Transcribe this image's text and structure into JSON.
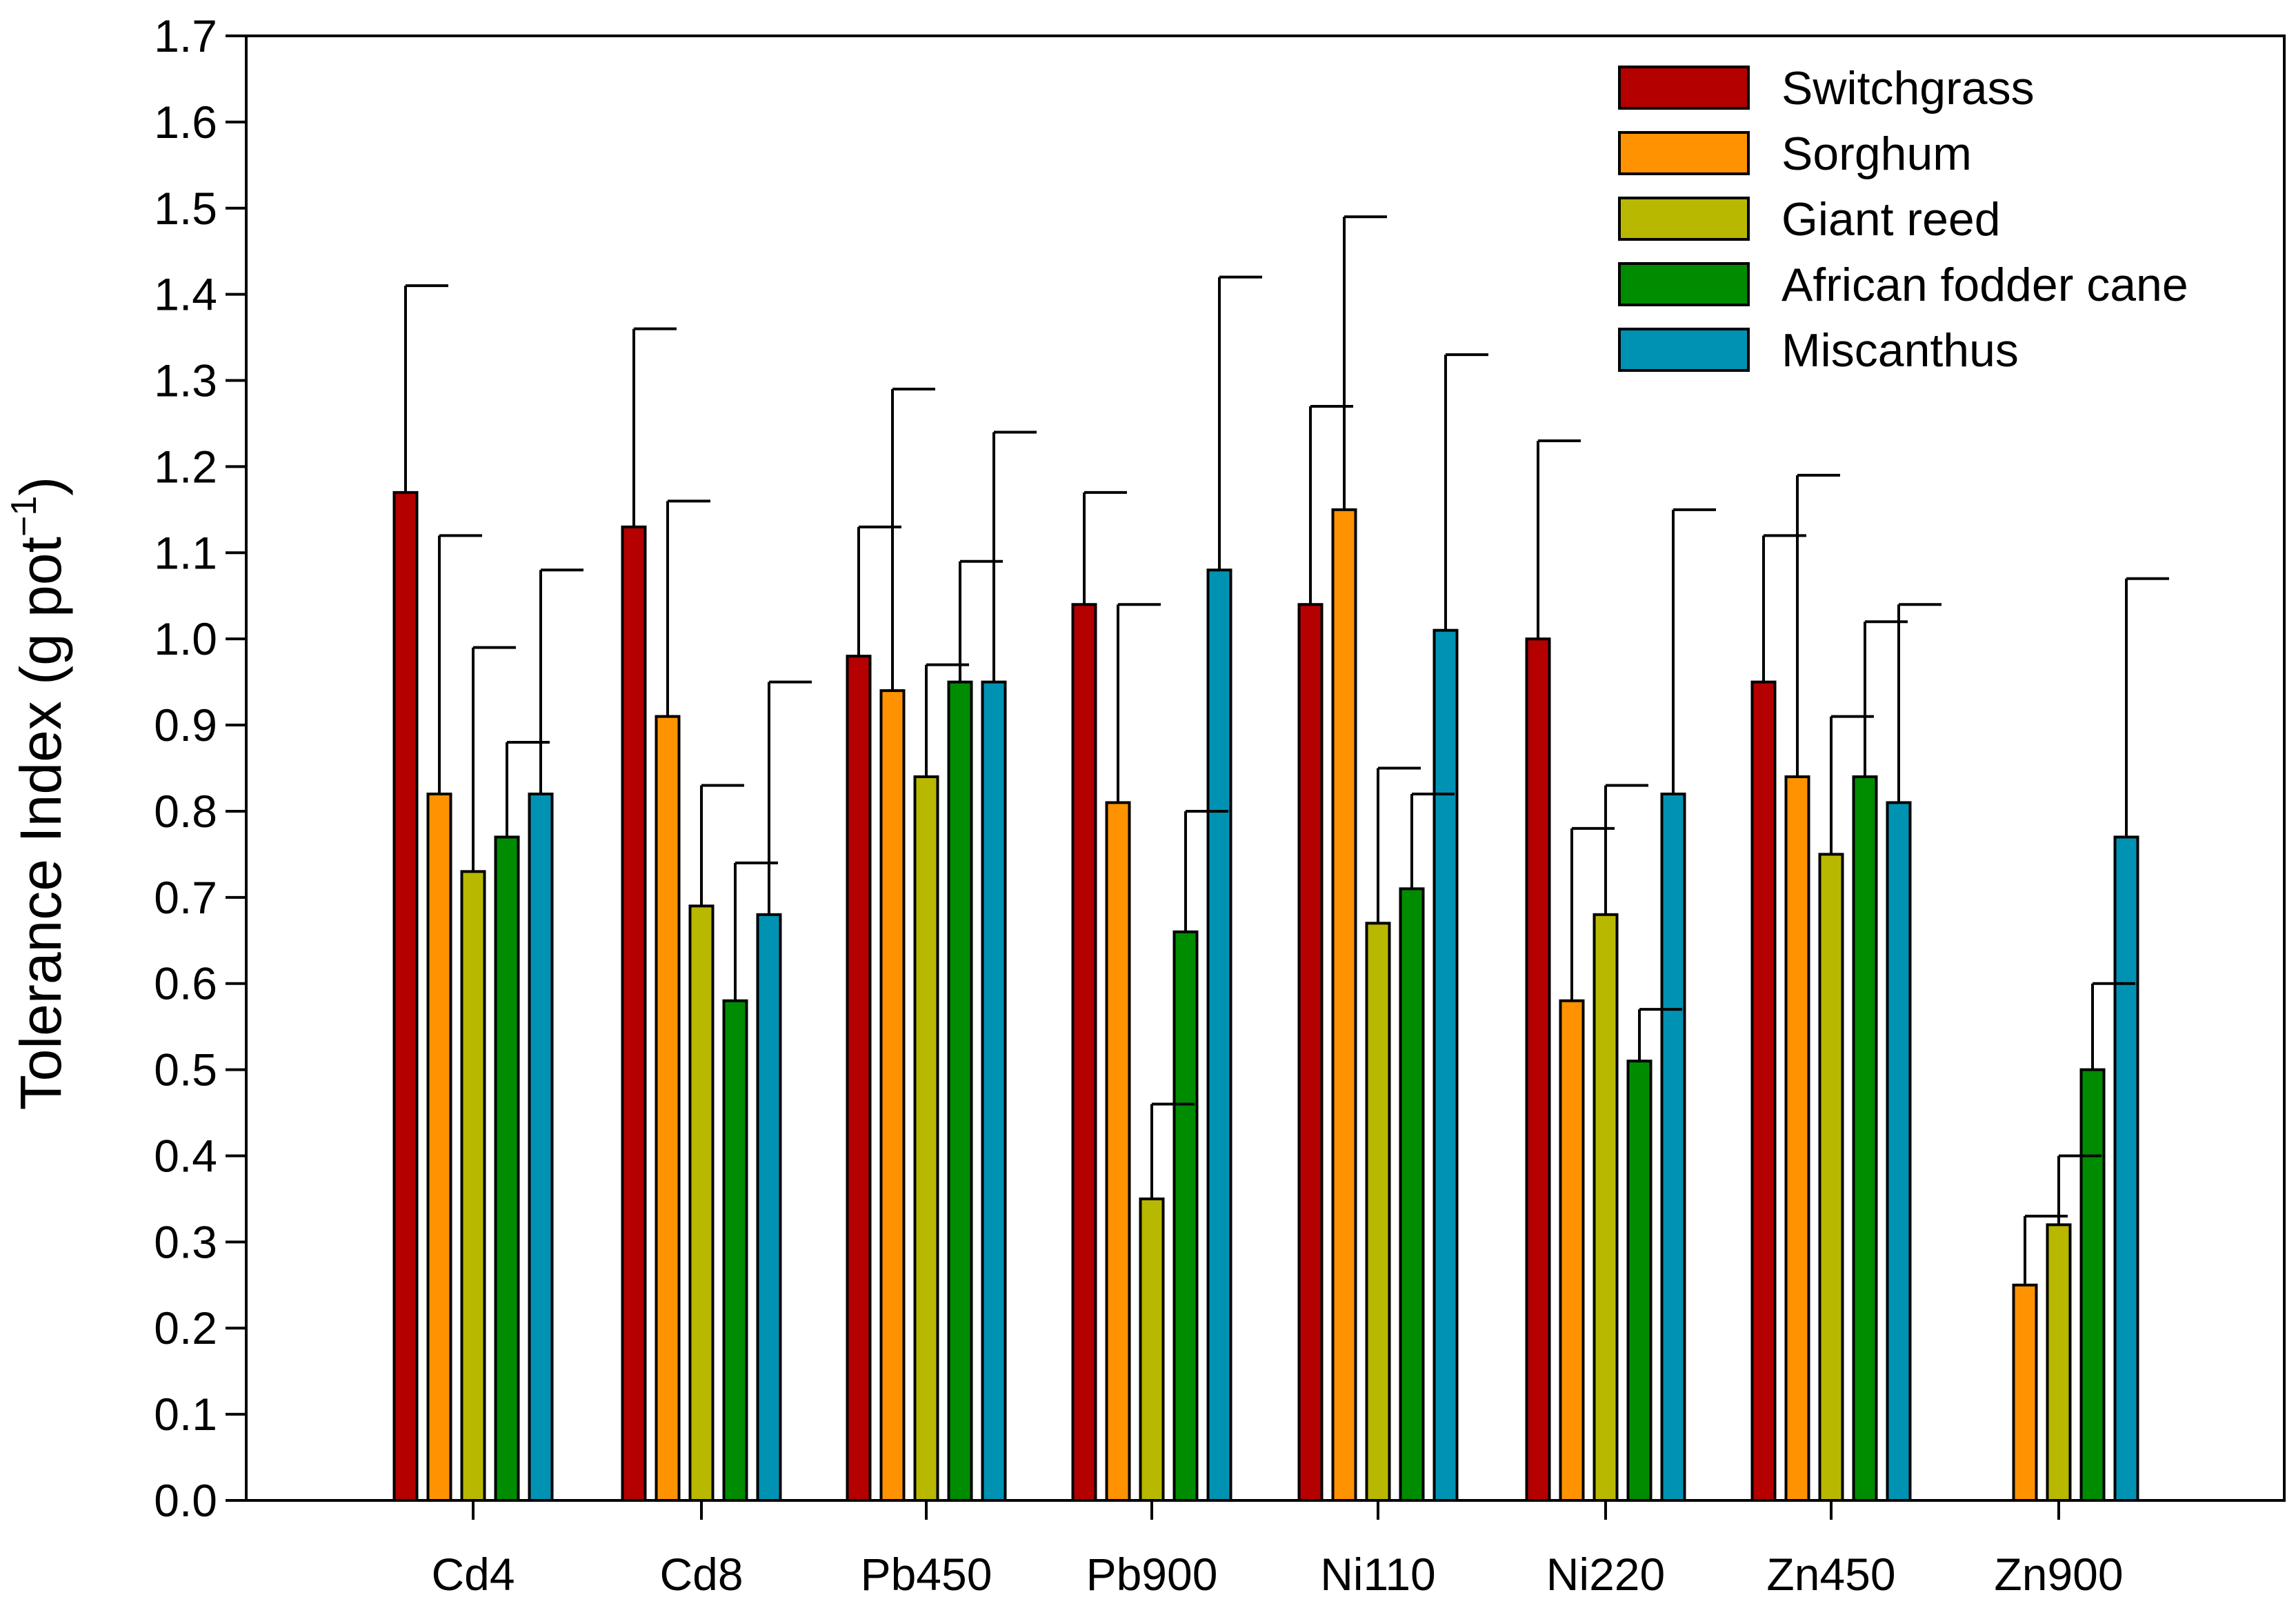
{
  "chart_data": {
    "type": "bar",
    "title": "",
    "xlabel": "",
    "ylabel": "Tolerance Index (g pot",
    "ylabel_superscript": "−1",
    "ylabel_close": ")",
    "ylim": [
      0,
      1.7
    ],
    "yticks": [
      "0.0",
      "0.1",
      "0.2",
      "0.3",
      "0.4",
      "0.5",
      "0.6",
      "0.7",
      "0.8",
      "0.9",
      "1.0",
      "1.1",
      "1.2",
      "1.3",
      "1.4",
      "1.5",
      "1.6",
      "1.7"
    ],
    "categories": [
      "Cd4",
      "Cd8",
      "Pb450",
      "Pb900",
      "Ni110",
      "Ni220",
      "Zn450",
      "Zn900"
    ],
    "legend_position": "top-right",
    "series": [
      {
        "name": "Switchgrass",
        "color": "#b50000",
        "values": [
          1.17,
          1.13,
          0.98,
          1.04,
          1.04,
          1.0,
          0.95,
          null
        ],
        "errors": [
          0.24,
          0.23,
          0.15,
          0.13,
          0.23,
          0.23,
          0.17,
          null
        ]
      },
      {
        "name": "Sorghum",
        "color": "#ff9200",
        "values": [
          0.82,
          0.91,
          0.94,
          0.81,
          1.15,
          0.58,
          0.84,
          0.25
        ],
        "errors": [
          0.3,
          0.25,
          0.35,
          0.23,
          0.34,
          0.2,
          0.35,
          0.08
        ]
      },
      {
        "name": "Giant reed",
        "color": "#b9b800",
        "values": [
          0.73,
          0.69,
          0.84,
          0.35,
          0.67,
          0.68,
          0.75,
          0.32
        ],
        "errors": [
          0.26,
          0.14,
          0.13,
          0.11,
          0.18,
          0.15,
          0.16,
          0.08
        ]
      },
      {
        "name": "African fodder cane",
        "color": "#008c00",
        "values": [
          0.77,
          0.58,
          0.95,
          0.66,
          0.71,
          0.51,
          0.84,
          0.5
        ],
        "errors": [
          0.11,
          0.16,
          0.14,
          0.14,
          0.11,
          0.06,
          0.18,
          0.1
        ]
      },
      {
        "name": "Miscanthus",
        "color": "#0092b3",
        "values": [
          0.82,
          0.68,
          0.95,
          1.08,
          1.01,
          0.82,
          0.81,
          0.77
        ],
        "errors": [
          0.26,
          0.27,
          0.29,
          0.34,
          0.32,
          0.33,
          0.23,
          0.3
        ]
      }
    ]
  }
}
